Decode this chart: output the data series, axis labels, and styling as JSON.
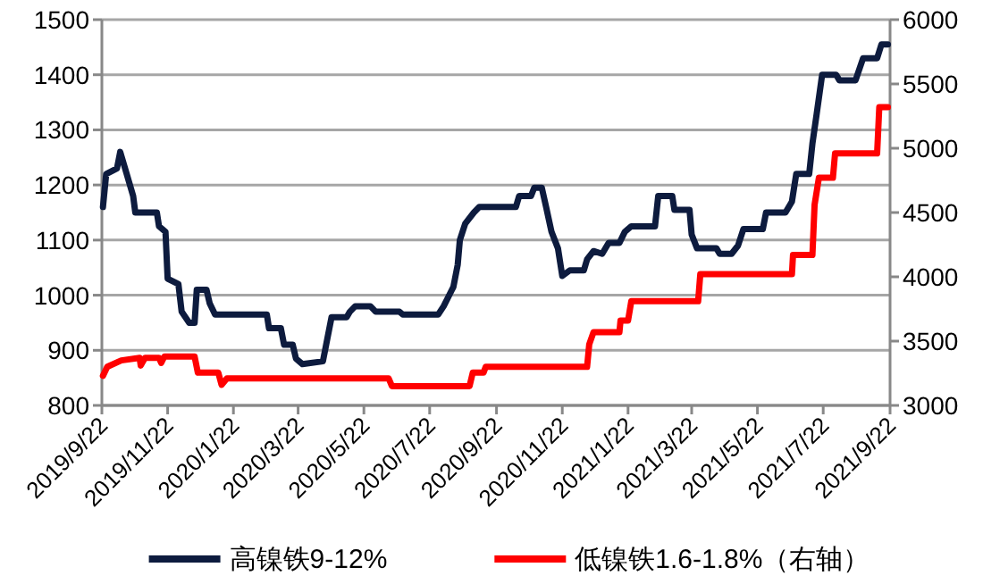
{
  "chart_data": {
    "type": "line",
    "xlim": [
      "2019-09-22",
      "2021-09-22"
    ],
    "xticks": [
      {
        "value": "2019-09-22",
        "label": "2019/9/22"
      },
      {
        "value": "2019-11-22",
        "label": "2019/11/22"
      },
      {
        "value": "2020-01-22",
        "label": "2020/1/22"
      },
      {
        "value": "2020-03-22",
        "label": "2020/3/22"
      },
      {
        "value": "2020-05-22",
        "label": "2020/5/22"
      },
      {
        "value": "2020-07-22",
        "label": "2020/7/22"
      },
      {
        "value": "2020-09-22",
        "label": "2020/9/22"
      },
      {
        "value": "2020-11-22",
        "label": "2020/11/22"
      },
      {
        "value": "2021-01-22",
        "label": "2021/1/22"
      },
      {
        "value": "2021-03-22",
        "label": "2021/3/22"
      },
      {
        "value": "2021-05-22",
        "label": "2021/5/22"
      },
      {
        "value": "2021-07-22",
        "label": "2021/7/22"
      },
      {
        "value": "2021-09-22",
        "label": "2021/9/22"
      }
    ],
    "ylim": [
      800,
      1500
    ],
    "yticks": [
      800,
      900,
      1000,
      1100,
      1200,
      1300,
      1400,
      1500
    ],
    "y2lim": [
      3000,
      6000
    ],
    "y2ticks": [
      3000,
      3500,
      4000,
      4500,
      5000,
      5500,
      6000
    ],
    "grid": "y",
    "legend": "bottom",
    "line_style": "solid",
    "series": [
      {
        "name": "高镍铁9-12%",
        "color": "#0d1b3e",
        "x": [
          "2019-09-23",
          "2019-09-26",
          "2019-10-06",
          "2019-10-09",
          "2019-10-15",
          "2019-10-21",
          "2019-10-23",
          "2019-11-12",
          "2019-11-14",
          "2019-11-20",
          "2019-11-22",
          "2019-12-02",
          "2019-12-05",
          "2019-12-12",
          "2019-12-17",
          "2019-12-19",
          "2019-12-28",
          "2019-12-31",
          "2020-01-05",
          "2020-02-22",
          "2020-02-24",
          "2020-03-06",
          "2020-03-09",
          "2020-03-17",
          "2020-03-20",
          "2020-03-26",
          "2020-04-14",
          "2020-04-22",
          "2020-05-06",
          "2020-05-09",
          "2020-05-14",
          "2020-05-28",
          "2020-06-02",
          "2020-06-24",
          "2020-06-27",
          "2020-07-30",
          "2020-08-04",
          "2020-08-13",
          "2020-08-17",
          "2020-08-19",
          "2020-08-24",
          "2020-09-01",
          "2020-09-06",
          "2020-10-10",
          "2020-10-13",
          "2020-10-24",
          "2020-10-27",
          "2020-11-03",
          "2020-11-07",
          "2020-11-12",
          "2020-11-18",
          "2020-11-22",
          "2020-11-29",
          "2020-12-12",
          "2020-12-15",
          "2020-12-21",
          "2020-12-29",
          "2021-01-04",
          "2021-01-14",
          "2021-01-19",
          "2021-01-25",
          "2021-02-16",
          "2021-02-19",
          "2021-03-04",
          "2021-03-06",
          "2021-03-20",
          "2021-03-22",
          "2021-03-27",
          "2021-04-14",
          "2021-04-17",
          "2021-04-28",
          "2021-05-04",
          "2021-05-09",
          "2021-05-27",
          "2021-05-30",
          "2021-06-17",
          "2021-06-23",
          "2021-06-27",
          "2021-07-09",
          "2021-07-12",
          "2021-07-16",
          "2021-07-21",
          "2021-08-03",
          "2021-08-06",
          "2021-08-21",
          "2021-08-28",
          "2021-09-10",
          "2021-09-14",
          "2021-09-20"
        ],
        "values": [
          1160,
          1220,
          1230,
          1260,
          1220,
          1180,
          1150,
          1150,
          1125,
          1115,
          1030,
          1020,
          970,
          950,
          950,
          1010,
          1010,
          985,
          965,
          965,
          940,
          940,
          910,
          910,
          885,
          875,
          880,
          960,
          960,
          970,
          980,
          980,
          970,
          970,
          965,
          965,
          980,
          1015,
          1055,
          1100,
          1130,
          1150,
          1160,
          1160,
          1180,
          1180,
          1195,
          1195,
          1160,
          1115,
          1085,
          1035,
          1045,
          1045,
          1065,
          1080,
          1075,
          1095,
          1095,
          1115,
          1125,
          1125,
          1180,
          1180,
          1155,
          1155,
          1110,
          1085,
          1085,
          1075,
          1075,
          1090,
          1120,
          1120,
          1150,
          1150,
          1170,
          1220,
          1220,
          1275,
          1330,
          1400,
          1400,
          1390,
          1390,
          1430,
          1430,
          1455,
          1455
        ]
      },
      {
        "name": "低镍铁1.6-1.8%（右轴）",
        "color": "#ff0000",
        "axis": "y2",
        "x": [
          "2019-09-23",
          "2019-09-27",
          "2019-10-10",
          "2019-10-27",
          "2019-10-28",
          "2019-11-01",
          "2019-11-14",
          "2019-11-16",
          "2019-11-19",
          "2019-12-17",
          "2019-12-20",
          "2020-01-08",
          "2020-01-11",
          "2020-01-16",
          "2020-06-14",
          "2020-06-17",
          "2020-08-28",
          "2020-08-31",
          "2020-09-10",
          "2020-09-12",
          "2020-12-15",
          "2020-12-17",
          "2020-12-21",
          "2021-01-14",
          "2021-01-15",
          "2021-01-22",
          "2021-01-25",
          "2021-03-28",
          "2021-03-30",
          "2021-06-23",
          "2021-06-24",
          "2021-07-12",
          "2021-07-14",
          "2021-07-18",
          "2021-07-31",
          "2021-08-02",
          "2021-09-10",
          "2021-09-12",
          "2021-09-20"
        ],
        "values": [
          3230,
          3300,
          3350,
          3370,
          3310,
          3370,
          3370,
          3330,
          3380,
          3380,
          3255,
          3255,
          3160,
          3210,
          3210,
          3150,
          3150,
          3255,
          3255,
          3300,
          3300,
          3475,
          3570,
          3570,
          3660,
          3660,
          3810,
          3810,
          4020,
          4020,
          4170,
          4170,
          4560,
          4770,
          4770,
          4960,
          4960,
          5320,
          5320
        ]
      }
    ]
  }
}
